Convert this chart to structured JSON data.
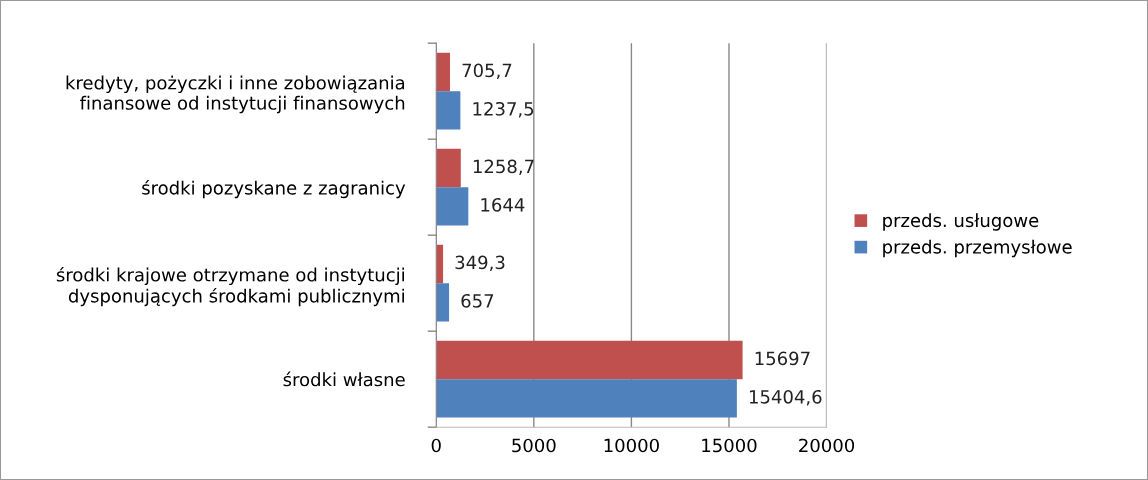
{
  "chart_data": {
    "type": "bar",
    "orientation": "horizontal",
    "categories": [
      "kredyty, pożyczki i inne zobowiązania\nfinansowe od instytucji finansowych",
      "środki pozyskane z zagranicy",
      "środki krajowe otrzymane od instytucji\ndysponujących środkami publicznymi",
      "środki własne"
    ],
    "series": [
      {
        "name": "przeds. usługowe",
        "color": "#c0504d",
        "values": [
          705.7,
          1258.7,
          349.3,
          15697
        ],
        "value_labels": [
          "705,7",
          "1258,7",
          "349,3",
          "15697"
        ]
      },
      {
        "name": "przeds. przemysłowe",
        "color": "#4f81bd",
        "values": [
          1237.5,
          1644,
          657,
          15404.6
        ],
        "value_labels": [
          "1237,5",
          "1644",
          "657",
          "15404,6"
        ]
      }
    ],
    "xlim": [
      0,
      20000
    ],
    "xticks": [
      0,
      5000,
      10000,
      15000,
      20000
    ],
    "grid": "x",
    "legend": "right"
  }
}
